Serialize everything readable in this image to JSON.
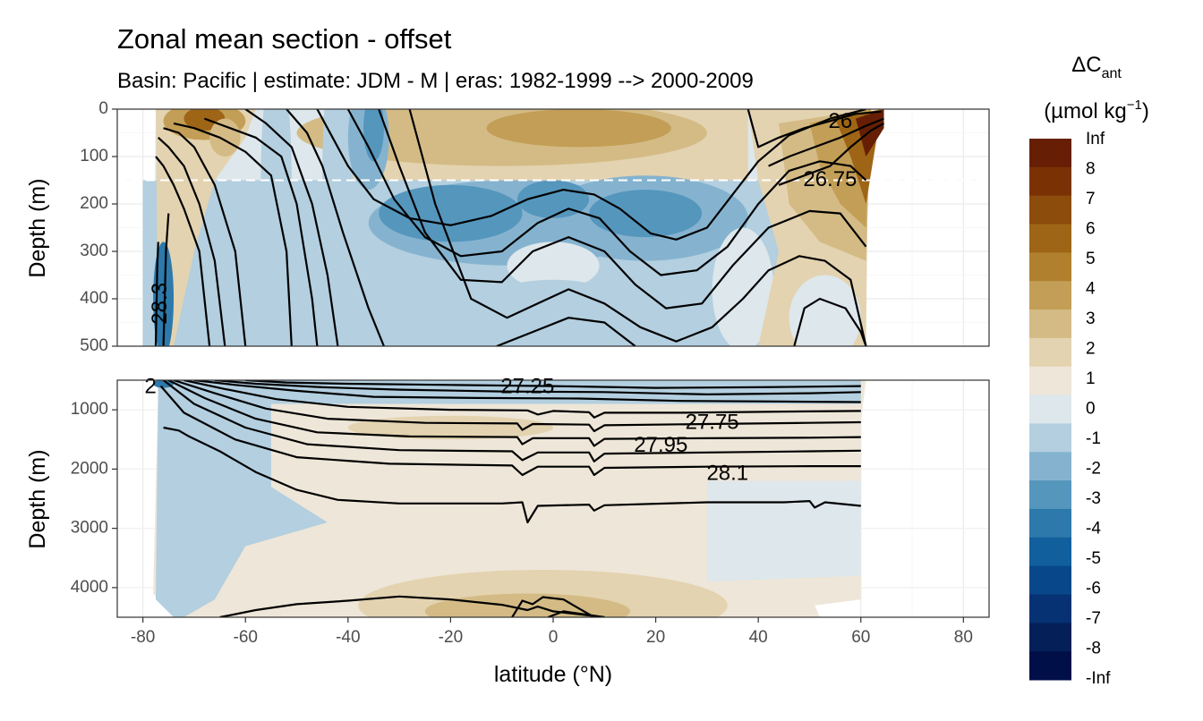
{
  "chart_data": {
    "type": "heatmap",
    "title": "Zonal mean section - offset",
    "subtitle": "Basin: Pacific | estimate: JDM - M | eras: 1982-1999 --> 2000-2009",
    "xlabel": "latitude (°N)",
    "ylabel": "Depth (m)",
    "xlim": [
      -85,
      85
    ],
    "x_ticks": [
      -80,
      -60,
      -40,
      -20,
      0,
      20,
      40,
      60,
      80
    ],
    "x_tick_labels": [
      "-80",
      "-60",
      "-40",
      "-20",
      "0",
      "20",
      "40",
      "60",
      "80"
    ],
    "panels": [
      {
        "name": "upper",
        "ylim": [
          0,
          500
        ],
        "y_ticks": [
          0,
          100,
          200,
          300,
          400,
          500
        ],
        "y_tick_labels": [
          "0",
          "100",
          "200",
          "300",
          "400",
          "500"
        ],
        "reference_line_depth": 150,
        "contour_labels": [
          {
            "text": "26",
            "lat": 56,
            "depth": 28
          },
          {
            "text": "26.75",
            "lat": 54,
            "depth": 150
          },
          {
            "text": "28.3",
            "lat": -76.5,
            "depth": 410
          }
        ]
      },
      {
        "name": "lower",
        "ylim": [
          500,
          4500
        ],
        "y_ticks": [
          1000,
          2000,
          3000,
          4000
        ],
        "y_tick_labels": [
          "1000",
          "2000",
          "3000",
          "4000"
        ],
        "contour_labels": [
          {
            "text": "27.25",
            "lat": -5,
            "depth": 620
          },
          {
            "text": "27.75",
            "lat": 31,
            "depth": 1230
          },
          {
            "text": "27.95",
            "lat": 21,
            "depth": 1610
          },
          {
            "text": "28.1",
            "lat": 34,
            "depth": 2090
          },
          {
            "text": "2",
            "lat": -78.5,
            "depth": 620
          }
        ]
      }
    ],
    "legend": {
      "title_main": "ΔC",
      "title_sub": "ant",
      "unit_prefix": "(µmol kg",
      "unit_sup": "−1",
      "unit_suffix": ")",
      "labels": [
        "Inf",
        "8",
        "7",
        "6",
        "5",
        "4",
        "3",
        "2",
        "1",
        "0",
        "-1",
        "-2",
        "-3",
        "-4",
        "-5",
        "-6",
        "-7",
        "-8",
        "-Inf"
      ],
      "colors": [
        "#661f04",
        "#7a3205",
        "#8c4c0c",
        "#9e6517",
        "#b0802e",
        "#c39e56",
        "#d4bb85",
        "#e3d3b0",
        "#eee6d8",
        "#dde7ec",
        "#b3cfe0",
        "#85b3cf",
        "#5596bd",
        "#2d79ab",
        "#115f9c",
        "#08478a",
        "#063273",
        "#052059",
        "#000f47"
      ],
      "position": "right"
    },
    "field_colors": {
      "brown_dark": "#661f04",
      "brown_mid": "#9e6517",
      "tan": "#c39e56",
      "tan_light": "#d4bb85",
      "beige": "#e3d3b0",
      "cream": "#eee6d8",
      "ice": "#dde7ec",
      "blue_light": "#b3cfe0",
      "blue_mid": "#85b3cf",
      "blue": "#5596bd",
      "blue_dark": "#2d79ab"
    }
  }
}
